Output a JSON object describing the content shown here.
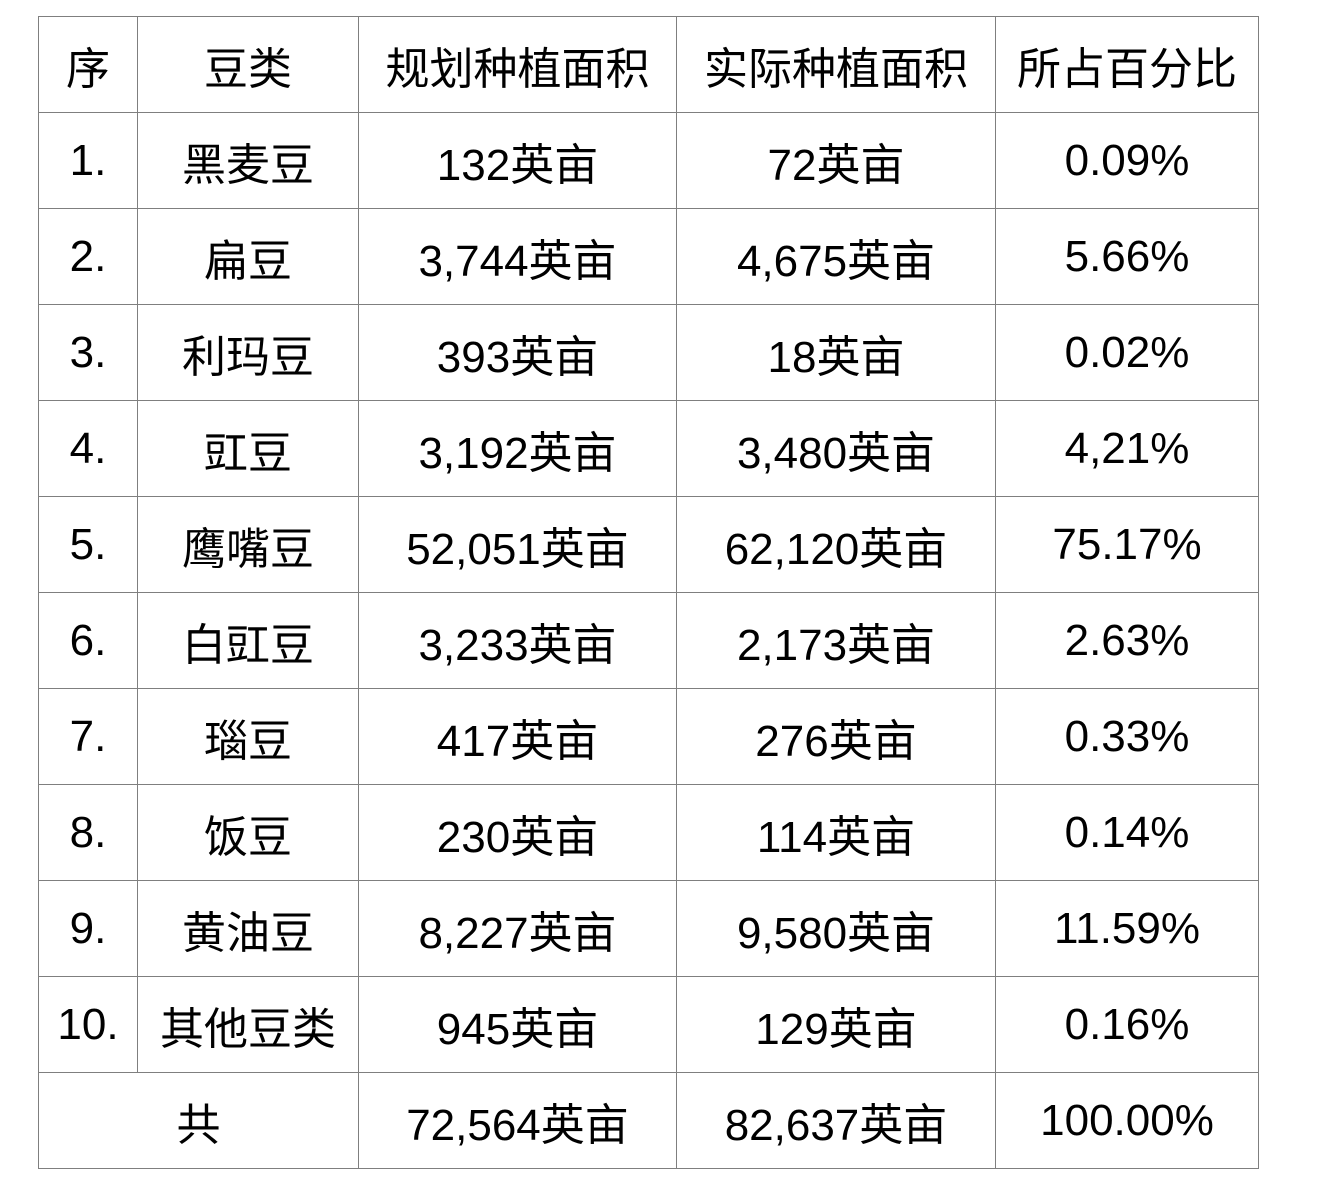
{
  "table": {
    "columns": {
      "no": "序",
      "bean": "豆类",
      "planned": "规划种植面积",
      "actual": "实际种植面积",
      "percent": "所占百分比"
    },
    "rows": [
      {
        "no": "1.",
        "bean": "黑麦豆",
        "planned": "132英亩",
        "actual": "72英亩",
        "percent": "0.09%"
      },
      {
        "no": "2.",
        "bean": "扁豆",
        "planned": "3,744英亩",
        "actual": "4,675英亩",
        "percent": "5.66%"
      },
      {
        "no": "3.",
        "bean": "利玛豆",
        "planned": "393英亩",
        "actual": "18英亩",
        "percent": "0.02%"
      },
      {
        "no": "4.",
        "bean": "豇豆",
        "planned": "3,192英亩",
        "actual": "3,480英亩",
        "percent": "4,21%"
      },
      {
        "no": "5.",
        "bean": "鹰嘴豆",
        "planned": "52,051英亩",
        "actual": "62,120英亩",
        "percent": "75.17%"
      },
      {
        "no": "6.",
        "bean": "白豇豆",
        "planned": "3,233英亩",
        "actual": "2,173英亩",
        "percent": "2.63%"
      },
      {
        "no": "7.",
        "bean": "瑙豆",
        "planned": "417英亩",
        "actual": "276英亩",
        "percent": "0.33%"
      },
      {
        "no": "8.",
        "bean": "饭豆",
        "planned": "230英亩",
        "actual": "114英亩",
        "percent": "0.14%"
      },
      {
        "no": "9.",
        "bean": "黄油豆",
        "planned": "8,227英亩",
        "actual": "9,580英亩",
        "percent": "11.59%"
      },
      {
        "no": "10.",
        "bean": "其他豆类",
        "planned": "945英亩",
        "actual": "129英亩",
        "percent": "0.16%"
      }
    ],
    "total": {
      "label": "共",
      "planned": "72,564英亩",
      "actual": "82,637英亩",
      "percent": "100.00%"
    }
  }
}
